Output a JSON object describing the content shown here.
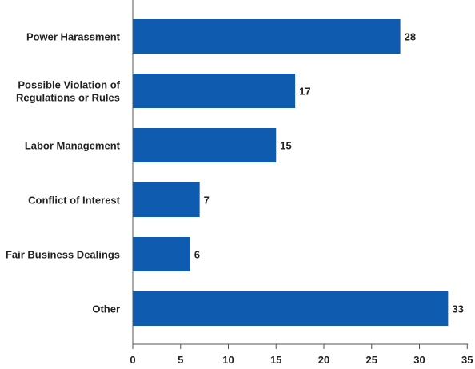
{
  "chart_data": {
    "type": "bar",
    "orientation": "horizontal",
    "categories": [
      [
        "Power Harassment"
      ],
      [
        "Possible Violation of",
        "Regulations or Rules"
      ],
      [
        "Labor Management"
      ],
      [
        "Conflict of Interest"
      ],
      [
        "Fair Business Dealings"
      ],
      [
        "Other"
      ]
    ],
    "values": [
      28,
      17,
      15,
      7,
      6,
      33
    ],
    "xlim": [
      0,
      35
    ],
    "ticks": [
      0,
      5,
      10,
      15,
      20,
      25,
      30,
      35
    ],
    "grid": false,
    "colors": {
      "bar": "#0e5bb0",
      "axis": "#555555",
      "text": "#222222"
    }
  }
}
